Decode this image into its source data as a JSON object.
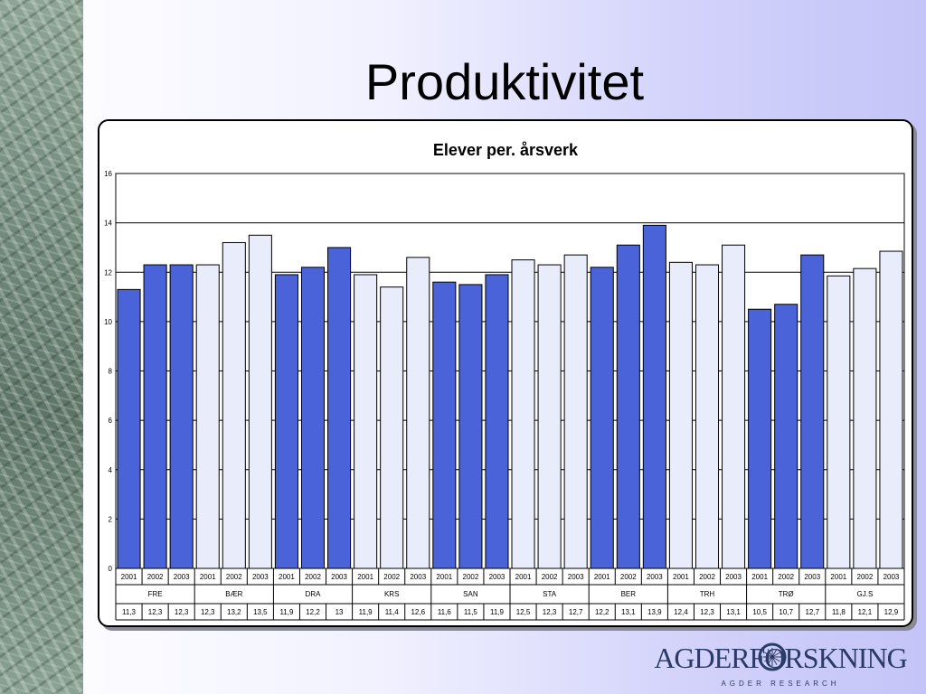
{
  "slide": {
    "title": "Produktivitet"
  },
  "logo": {
    "name": "AGDERFORSKNING",
    "subtitle": "AGDER RESEARCH"
  },
  "colors": {
    "dark_bar": "#4a63d8",
    "light_bar": "#e9ecfb",
    "bar_stroke": "#000000"
  },
  "chart_data": {
    "type": "bar",
    "title": "Elever per. årsverk",
    "xlabel": "",
    "ylabel": "",
    "ylim": [
      0,
      16
    ],
    "yticks": [
      0,
      2,
      4,
      6,
      8,
      10,
      12,
      14,
      16
    ],
    "grid": true,
    "legend": "none",
    "years": [
      "2001",
      "2002",
      "2003"
    ],
    "groups": [
      "FRE",
      "BÆR",
      "DRA",
      "KRS",
      "SAN",
      "STA",
      "BER",
      "TRH",
      "TRØ",
      "GJ.S"
    ],
    "group_shading": [
      "dark",
      "light",
      "dark",
      "light",
      "dark",
      "light",
      "dark",
      "light",
      "dark",
      "light"
    ],
    "values": [
      11.3,
      12.3,
      12.3,
      12.3,
      13.2,
      13.5,
      11.9,
      12.2,
      13.0,
      11.9,
      11.4,
      12.6,
      11.6,
      11.5,
      11.9,
      12.5,
      12.3,
      12.7,
      12.2,
      13.1,
      13.9,
      12.4,
      12.3,
      13.1,
      10.5,
      10.7,
      12.7,
      11.85,
      12.15,
      12.85
    ],
    "value_labels": [
      "11,3",
      "12,3",
      "12,3",
      "12,3",
      "13,2",
      "13,5",
      "11,9",
      "12,2",
      "13",
      "11,9",
      "11,4",
      "12,6",
      "11,6",
      "11,5",
      "11,9",
      "12,5",
      "12,3",
      "12,7",
      "12,2",
      "13,1",
      "13,9",
      "12,4",
      "12,3",
      "13,1",
      "10,5",
      "10,7",
      "12,7",
      "11,8",
      "12,1",
      "12,9"
    ]
  }
}
